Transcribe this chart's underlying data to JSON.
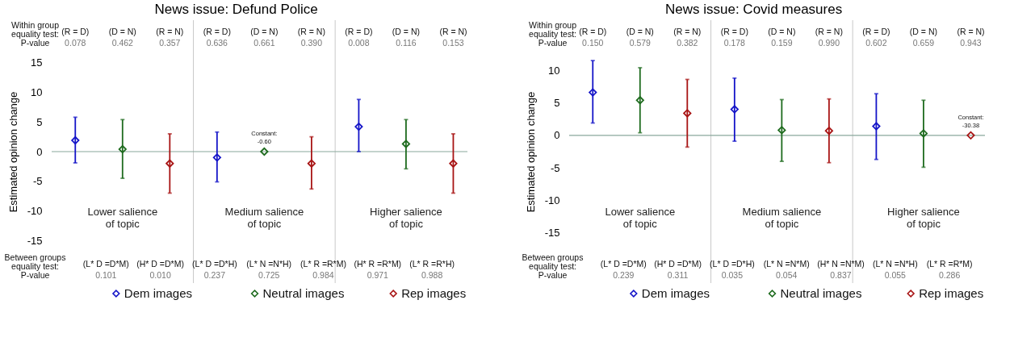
{
  "chart_data": [
    {
      "type": "scatter",
      "title": "News issue: Defund Police",
      "ylabel": "Estimated opinion change",
      "categories": [
        null,
        null,
        null,
        null,
        null,
        null,
        null,
        null,
        null
      ],
      "series": [
        {
          "name": "Dem images",
          "color": "#1414c8",
          "values": [
            1.9,
            null,
            null,
            -1.0,
            null,
            null,
            4.2,
            null,
            null
          ],
          "errors": [
            [
              -1.9,
              5.8
            ],
            null,
            null,
            [
              -5.1,
              3.3
            ],
            null,
            null,
            [
              0,
              8.8
            ],
            null,
            null
          ]
        },
        {
          "name": "Neutral images",
          "color": "#1e6b1e",
          "values": [
            null,
            0.4,
            null,
            null,
            0,
            null,
            null,
            1.3,
            null
          ],
          "errors": [
            null,
            [
              -4.5,
              5.4
            ],
            null,
            null,
            null,
            null,
            null,
            [
              -2.9,
              5.4
            ],
            null
          ]
        },
        {
          "name": "Rep images",
          "color": "#a81414",
          "values": [
            null,
            null,
            -2.0,
            null,
            null,
            -2.0,
            null,
            null,
            -2.0
          ],
          "errors": [
            null,
            null,
            [
              -7,
              3
            ],
            null,
            null,
            [
              -6.3,
              2.5
            ],
            null,
            null,
            [
              -7,
              3
            ]
          ]
        }
      ],
      "ylim": [
        -17,
        17
      ],
      "yticks": [
        -15,
        -10,
        -5,
        0,
        5,
        10,
        15
      ],
      "tick_labels": "y",
      "grid": false,
      "legend": "bottom",
      "marker": "diamond",
      "ref_lines": [
        {
          "axis": "y",
          "value": 0,
          "color": "#8aa89c"
        }
      ],
      "annotations": [
        "Within group\nequality test:",
        "P-value",
        "(R = D)",
        "(D = N)",
        "(R = N)",
        "(R = D)",
        "(D = N)",
        "(R = N)",
        "(R = D)",
        "(D = N)",
        "(R = N)",
        "0.078",
        "0.462",
        "0.357",
        "0.636",
        "0.661",
        "0.390",
        "0.008",
        "0.116",
        "0.153",
        "Between groups\nequality test:",
        "P-value",
        "(L* D =D*M)",
        "(H* D =D*M)",
        "(L* D =D*H)",
        "(L* N =N*H)",
        "(L* R =R*M)",
        "(H* R =R*M)",
        "(L* R =R*H)",
        "0.101",
        "0.010",
        "0.237",
        "0.725",
        "0.984",
        "0.971",
        "0.988",
        "Constant:\n-0.60",
        "Lower salience\nof topic",
        "Medium salience\nof topic",
        "Higher salience\nof topic"
      ]
    },
    {
      "type": "scatter",
      "title": "News issue: Covid measures",
      "ylabel": "Estimated opinion change",
      "categories": [
        null,
        null,
        null,
        null,
        null,
        null,
        null,
        null,
        null
      ],
      "series": [
        {
          "name": "Dem images",
          "color": "#1414c8",
          "values": [
            6.6,
            null,
            null,
            4.0,
            null,
            null,
            1.4,
            null,
            null
          ],
          "errors": [
            [
              1.9,
              11.5
            ],
            null,
            null,
            [
              -0.9,
              8.8
            ],
            null,
            null,
            [
              -3.7,
              6.4
            ],
            null,
            null
          ]
        },
        {
          "name": "Neutral images",
          "color": "#1e6b1e",
          "values": [
            null,
            5.4,
            null,
            null,
            0.8,
            null,
            null,
            0.3,
            null
          ],
          "errors": [
            null,
            [
              0.4,
              10.4
            ],
            null,
            null,
            [
              -4.0,
              5.5
            ],
            null,
            null,
            [
              -4.9,
              5.4
            ],
            null
          ]
        },
        {
          "name": "Rep images",
          "color": "#a81414",
          "values": [
            null,
            null,
            3.4,
            null,
            null,
            0.7,
            null,
            null,
            0
          ],
          "errors": [
            null,
            null,
            [
              -1.8,
              8.6
            ],
            null,
            null,
            [
              -4.2,
              5.6
            ],
            null,
            null,
            null
          ]
        }
      ],
      "ylim": [
        -18,
        13
      ],
      "yticks": [
        -15,
        -10,
        -5,
        0,
        5,
        10
      ],
      "tick_labels": "y",
      "grid": false,
      "legend": "bottom",
      "marker": "diamond",
      "ref_lines": [
        {
          "axis": "y",
          "value": 0,
          "color": "#8aa89c"
        }
      ],
      "annotations": [
        "Within group\nequality test:",
        "P-value",
        "(R = D)",
        "(D = N)",
        "(R = N)",
        "(R = D)",
        "(D = N)",
        "(R = N)",
        "(R = D)",
        "(D = N)",
        "(R = N)",
        "0.150",
        "0.579",
        "0.382",
        "0.178",
        "0.159",
        "0.990",
        "0.602",
        "0.659",
        "0.943",
        "Between groups\nequality test:",
        "P-value",
        "(L* D =D*M)",
        "(H* D =D*M)",
        "(L* D =D*H)",
        "(L* N =N*M)",
        "(H* N =N*M)",
        "(L* N =N*H)",
        "(L* R =R*M)",
        "0.239",
        "0.311",
        "0.035",
        "0.054",
        "0.837",
        "0.055",
        "0.286",
        "Constant:\n-30.38",
        "Lower salience\nof topic",
        "Medium salience\nof topic",
        "Higher salience\nof topic"
      ]
    }
  ]
}
